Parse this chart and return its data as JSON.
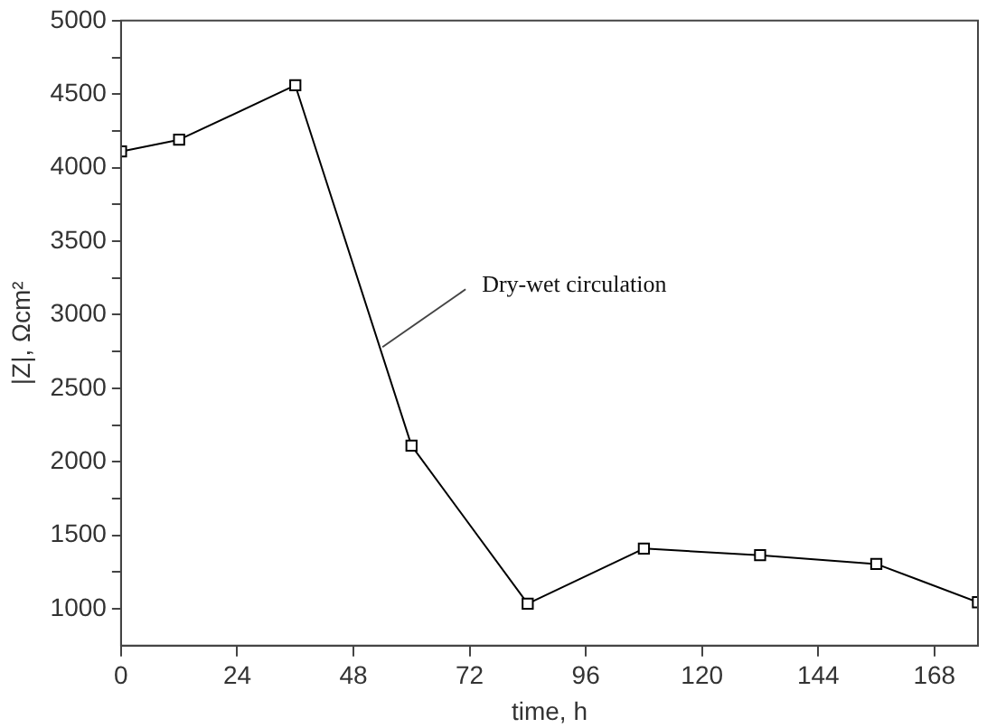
{
  "chart_data": {
    "type": "line",
    "xlabel": "time, h",
    "ylabel": "|Z|, Ωcm²",
    "x": [
      0,
      12,
      36,
      60,
      84,
      108,
      132,
      156,
      177
    ],
    "values": [
      4110,
      4190,
      4560,
      2110,
      1035,
      1410,
      1365,
      1305,
      1045
    ],
    "color": "#000000",
    "marker": "square",
    "line_style": "solid",
    "grid": false,
    "legend": false,
    "xlim": [
      0,
      177
    ],
    "xticks": [
      0,
      24,
      48,
      72,
      96,
      120,
      144,
      168
    ],
    "ylim": [
      750,
      5000
    ],
    "yticks": [
      1000,
      {
        "value": 1250,
        "label": null
      },
      1500,
      {
        "value": 1750,
        "label": null
      },
      2000,
      {
        "value": 2250,
        "label": null
      },
      2500,
      {
        "value": 2750,
        "label": null
      },
      3000,
      {
        "value": 3250,
        "label": null
      },
      3500,
      {
        "value": 3750,
        "label": null
      },
      4000,
      {
        "value": 4250,
        "label": null
      },
      4500,
      {
        "value": 4750,
        "label": null
      },
      5000
    ],
    "annotations": [
      {
        "text": "Dry-wet circulation",
        "x": 54,
        "y": 2780
      }
    ]
  }
}
